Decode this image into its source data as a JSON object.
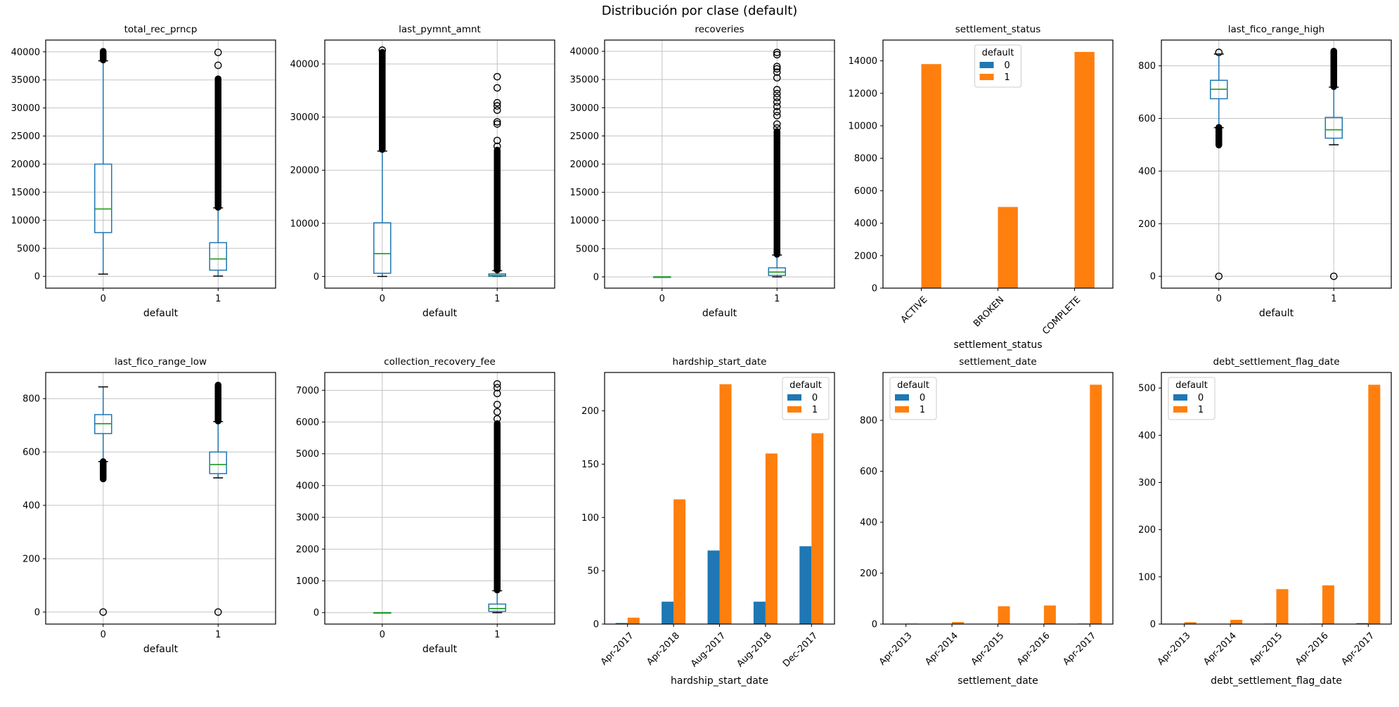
{
  "figure": {
    "suptitle": "Distribución por clase (default)",
    "background": "#ffffff"
  },
  "palette": {
    "box_line": "#1f77b4",
    "median_line": "#2ca02c",
    "flier": "#000000",
    "class0": "#1f77b4",
    "class1": "#ff7f0e",
    "grid": "#c3c3c3",
    "frame": "#000000"
  },
  "legend_labels": {
    "title": "default",
    "class0": "0",
    "class1": "1"
  },
  "chart_data": [
    {
      "type": "box",
      "title": "total_rec_prncp",
      "xlabel": "default",
      "categories": [
        "0",
        "1"
      ],
      "ylim": [
        -2100,
        42100
      ],
      "yticks": [
        0,
        5000,
        10000,
        15000,
        20000,
        25000,
        30000,
        35000,
        40000
      ],
      "grid": true,
      "boxes": [
        {
          "label": "0",
          "whislo": 400,
          "q1": 7800,
          "med": 12000,
          "q3": 20000,
          "whishi": 38400,
          "flier_band": [
            38550,
            40100
          ],
          "flier_circles": []
        },
        {
          "label": "1",
          "whislo": 50,
          "q1": 1100,
          "med": 3100,
          "q3": 6000,
          "whishi": 12200,
          "flier_band": [
            12300,
            35200
          ],
          "flier_circles": [
            37600,
            39900
          ]
        }
      ]
    },
    {
      "type": "box",
      "title": "last_pymnt_amnt",
      "xlabel": "default",
      "categories": [
        "0",
        "1"
      ],
      "ylim": [
        -2200,
        44500
      ],
      "yticks": [
        0,
        10000,
        20000,
        30000,
        40000
      ],
      "grid": true,
      "boxes": [
        {
          "label": "0",
          "whislo": 0,
          "q1": 600,
          "med": 4300,
          "q3": 10100,
          "whishi": 23600,
          "flier_band": [
            23900,
            42200
          ],
          "flier_circles": [
            42600
          ]
        },
        {
          "label": "1",
          "whislo": 0,
          "q1": 50,
          "med": 180,
          "q3": 480,
          "whishi": 1100,
          "flier_band": [
            1200,
            23800
          ],
          "flier_circles": [
            24500,
            25600,
            28700,
            29100,
            31300,
            32100,
            32700,
            35500,
            37600
          ]
        }
      ]
    },
    {
      "type": "box",
      "title": "recoveries",
      "xlabel": "default",
      "categories": [
        "0",
        "1"
      ],
      "ylim": [
        -2000,
        42000
      ],
      "yticks": [
        0,
        5000,
        10000,
        15000,
        20000,
        25000,
        30000,
        35000,
        40000
      ],
      "grid": true,
      "boxes": [
        {
          "label": "0",
          "whislo": 0,
          "q1": 0,
          "med": 0,
          "q3": 0,
          "whishi": 0,
          "flier_band": null,
          "flier_circles": []
        },
        {
          "label": "1",
          "whislo": 0,
          "q1": 250,
          "med": 850,
          "q3": 1600,
          "whishi": 3870,
          "flier_band": [
            4000,
            25800
          ],
          "flier_circles": [
            26400,
            27100,
            28600,
            29300,
            30200,
            31000,
            31800,
            32500,
            33200,
            35300,
            36300,
            36900,
            37300,
            39400,
            39800
          ]
        }
      ]
    },
    {
      "type": "bar",
      "title": "settlement_status",
      "xlabel": "settlement_status",
      "categories": [
        "ACTIVE",
        "BROKEN",
        "COMPLETE"
      ],
      "series": [
        {
          "name": "0",
          "color_key": "class0",
          "values": [
            0,
            0,
            0
          ]
        },
        {
          "name": "1",
          "color_key": "class1",
          "values": [
            13800,
            5000,
            14550
          ]
        }
      ],
      "ylim": [
        0,
        15280
      ],
      "yticks": [
        0,
        2000,
        4000,
        6000,
        8000,
        10000,
        12000,
        14000
      ],
      "grid": false,
      "xtick_rotation": 45,
      "legend": {
        "title": "default",
        "loc": "upper-center"
      }
    },
    {
      "type": "box",
      "title": "last_fico_range_high",
      "xlabel": "default",
      "categories": [
        "0",
        "1"
      ],
      "ylim": [
        -45,
        898
      ],
      "yticks": [
        0,
        200,
        400,
        600,
        800
      ],
      "grid": true,
      "boxes": [
        {
          "label": "0",
          "whislo": 565,
          "q1": 675,
          "med": 711,
          "q3": 745,
          "whishi": 845,
          "flier_band": [
            499,
            566
          ],
          "flier_circles": [
            0,
            851
          ]
        },
        {
          "label": "1",
          "whislo": 500,
          "q1": 525,
          "med": 557,
          "q3": 604,
          "whishi": 719,
          "flier_band": [
            721,
            856
          ],
          "flier_circles": [
            0
          ]
        }
      ]
    },
    {
      "type": "box",
      "title": "last_fico_range_low",
      "xlabel": "default",
      "categories": [
        "0",
        "1"
      ],
      "ylim": [
        -45,
        898
      ],
      "yticks": [
        0,
        200,
        400,
        600,
        800
      ],
      "grid": true,
      "boxes": [
        {
          "label": "0",
          "whislo": 564,
          "q1": 669,
          "med": 706,
          "q3": 740,
          "whishi": 844,
          "flier_band": [
            499,
            564
          ],
          "flier_circles": [
            0
          ]
        },
        {
          "label": "1",
          "whislo": 503,
          "q1": 519,
          "med": 553,
          "q3": 600,
          "whishi": 714,
          "flier_band": [
            716,
            851
          ],
          "flier_circles": [
            0
          ]
        }
      ]
    },
    {
      "type": "box",
      "title": "collection_recovery_fee",
      "xlabel": "default",
      "categories": [
        "0",
        "1"
      ],
      "ylim": [
        -360,
        7560
      ],
      "yticks": [
        0,
        1000,
        2000,
        3000,
        4000,
        5000,
        6000,
        7000
      ],
      "grid": true,
      "boxes": [
        {
          "label": "0",
          "whislo": 0,
          "q1": 0,
          "med": 0,
          "q3": 0,
          "whishi": 0,
          "flier_band": null,
          "flier_circles": []
        },
        {
          "label": "1",
          "whislo": 0,
          "q1": 40,
          "med": 130,
          "q3": 270,
          "whishi": 690,
          "flier_band": [
            710,
            5950
          ],
          "flier_circles": [
            6100,
            6320,
            6550,
            6900,
            7080,
            7200
          ]
        }
      ]
    },
    {
      "type": "bar",
      "title": "hardship_start_date",
      "xlabel": "hardship_start_date",
      "categories": [
        "Apr-2017",
        "Apr-2018",
        "Aug-2017",
        "Aug-2018",
        "Dec-2017"
      ],
      "series": [
        {
          "name": "0",
          "color_key": "class0",
          "values": [
            1,
            21,
            69,
            21,
            73
          ]
        },
        {
          "name": "1",
          "color_key": "class1",
          "values": [
            6,
            117,
            225,
            160,
            179
          ]
        }
      ],
      "ylim": [
        0,
        236
      ],
      "yticks": [
        0,
        50,
        100,
        150,
        200
      ],
      "grid": false,
      "xtick_rotation": 45,
      "legend": {
        "title": "default",
        "loc": "upper-right"
      }
    },
    {
      "type": "bar",
      "title": "settlement_date",
      "xlabel": "settlement_date",
      "categories": [
        "Apr-2013",
        "Apr-2014",
        "Apr-2015",
        "Apr-2016",
        "Apr-2017"
      ],
      "series": [
        {
          "name": "0",
          "color_key": "class0",
          "values": [
            0,
            0,
            1,
            1,
            2
          ]
        },
        {
          "name": "1",
          "color_key": "class1",
          "values": [
            2,
            8,
            70,
            73,
            940
          ]
        }
      ],
      "ylim": [
        0,
        988
      ],
      "yticks": [
        0,
        200,
        400,
        600,
        800
      ],
      "grid": false,
      "xtick_rotation": 45,
      "legend": {
        "title": "default",
        "loc": "upper-left"
      }
    },
    {
      "type": "bar",
      "title": "debt_settlement_flag_date",
      "xlabel": "debt_settlement_flag_date",
      "categories": [
        "Apr-2013",
        "Apr-2014",
        "Apr-2015",
        "Apr-2016",
        "Apr-2017"
      ],
      "series": [
        {
          "name": "0",
          "color_key": "class0",
          "values": [
            0,
            0,
            1,
            1,
            2
          ]
        },
        {
          "name": "1",
          "color_key": "class1",
          "values": [
            4,
            9,
            74,
            82,
            507
          ]
        }
      ],
      "ylim": [
        0,
        533
      ],
      "yticks": [
        0,
        100,
        200,
        300,
        400,
        500
      ],
      "grid": false,
      "xtick_rotation": 45,
      "legend": {
        "title": "default",
        "loc": "upper-left"
      }
    }
  ]
}
